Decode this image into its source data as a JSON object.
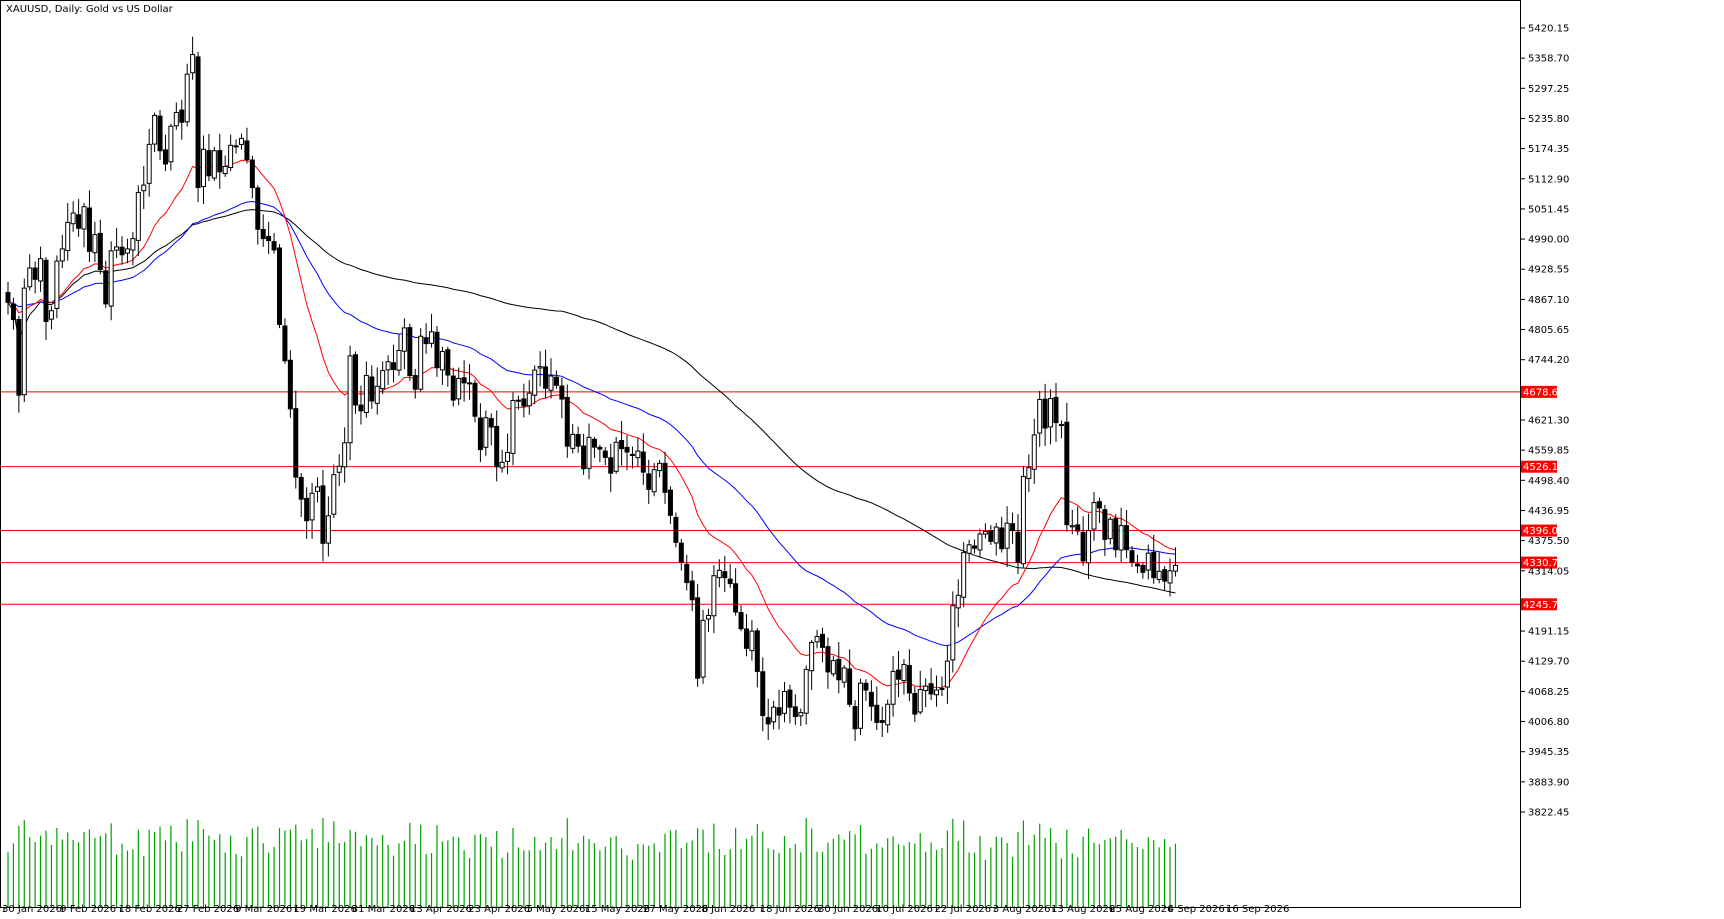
{
  "header": {
    "symbol": "XAUUSD",
    "timeframe": "Daily",
    "description": "Gold vs US Dollar",
    "title": "XAUUSD, Daily:  Gold vs US Dollar"
  },
  "chart_data": {
    "type": "candlestick",
    "title": "XAUUSD, Daily:  Gold vs US Dollar",
    "y_axis": {
      "range": [
        3790,
        5450
      ],
      "ticks": [
        "5420.15",
        "5358.70",
        "5297.25",
        "5235.80",
        "5174.35",
        "5112.90",
        "5051.45",
        "4990.00",
        "4928.55",
        "4867.10",
        "4805.65",
        "4744.20",
        "4621.30",
        "4559.85",
        "4498.40",
        "4436.95",
        "4375.50",
        "4314.05",
        "4191.15",
        "4129.70",
        "4068.25",
        "4006.80",
        "3945.35",
        "3883.90",
        "3822.45"
      ]
    },
    "x_axis": {
      "labels": [
        "30 Jan 2026",
        "9 Feb 2026",
        "18 Feb 2026",
        "27 Feb 2026",
        "9 Mar 2026",
        "19 Mar 2026",
        "31 Mar 2026",
        "13 Apr 2026",
        "23 Apr 2026",
        "5 May 2026",
        "15 May 2026",
        "27 May 2026",
        "8 Jun 2026",
        "18 Jun 2026",
        "30 Jun 2026",
        "10 Jul 2026",
        "22 Jul 2026",
        "3 Aug 2026",
        "13 Aug 2026",
        "25 Aug 2026",
        "4 Sep 2026",
        "16 Sep 2026"
      ]
    },
    "horizontal_levels": [
      {
        "value": 4678.6,
        "label": "4678.60",
        "color": "#ff0000"
      },
      {
        "value": 4526.16,
        "label": "4526.16",
        "color": "#ff0000"
      },
      {
        "value": 4396.02,
        "label": "4396.02",
        "color": "#ff0000"
      },
      {
        "value": 4330.72,
        "label": "4330.72",
        "color": "#ff0000"
      },
      {
        "value": 4245.73,
        "label": "4245.73",
        "color": "#ff0000"
      }
    ],
    "candles_close": [
      4861,
      4826,
      4672,
      4890,
      4931,
      4908,
      4950,
      4822,
      4844,
      4945,
      4970,
      5024,
      5043,
      5012,
      5056,
      4965,
      4999,
      4928,
      4858,
      4966,
      4974,
      4958,
      4970,
      4991,
      5085,
      5100,
      5183,
      5242,
      5170,
      5143,
      5220,
      5248,
      5228,
      5326,
      5366,
      5095,
      5173,
      5119,
      5170,
      5127,
      5138,
      5181,
      5180,
      5195,
      5152,
      5095,
      5010,
      4991,
      4987,
      4968,
      4816,
      4742,
      4644,
      4505,
      4460,
      4416,
      4472,
      4485,
      4370,
      4426,
      4510,
      4527,
      4575,
      4752,
      4652,
      4640,
      4712,
      4660,
      4690,
      4722,
      4740,
      4724,
      4763,
      4809,
      4712,
      4684,
      4792,
      4777,
      4801,
      4728,
      4761,
      4713,
      4662,
      4706,
      4697,
      4697,
      4629,
      4561,
      4626,
      4607,
      4526,
      4535,
      4555,
      4661,
      4661,
      4650,
      4676,
      4723,
      4730,
      4686,
      4711,
      4692,
      4664,
      4568,
      4592,
      4568,
      4522,
      4586,
      4566,
      4562,
      4545,
      4513,
      4576,
      4563,
      4556,
      4549,
      4558,
      4515,
      4480,
      4520,
      4533,
      4474,
      4427,
      4372,
      4331,
      4290,
      4255,
      4095,
      4213,
      4223,
      4304,
      4315,
      4300,
      4288,
      4230,
      4196,
      4156,
      4191,
      4109,
      4019,
      4002,
      4036,
      4020,
      4068,
      4036,
      4017,
      4025,
      4113,
      4168,
      4180,
      4158,
      4108,
      4131,
      4092,
      4116,
      4042,
      3992,
      4085,
      4071,
      4038,
      4005,
      4005,
      4042,
      4109,
      4093,
      4123,
      4065,
      4022,
      4072,
      4079,
      4063,
      4071,
      4074,
      4130,
      4243,
      4264,
      4351,
      4367,
      4360,
      4389,
      4394,
      4374,
      4403,
      4359,
      4411,
      4396,
      4331,
      4506,
      4524,
      4591,
      4663,
      4605,
      4665,
      4616,
      4612,
      4408,
      4406,
      4395,
      4334,
      4396,
      4453,
      4442,
      4378,
      4419,
      4357,
      4406,
      4357,
      4331,
      4324,
      4311,
      4350,
      4300,
      4313,
      4293,
      4314,
      4325
    ],
    "candles_note_none": "",
    "ma_red_period_color": "#ff0000",
    "ma_blue_period_color": "#0000ff",
    "ma_black_period_color": "#000000",
    "volume_color": "#00a000"
  }
}
